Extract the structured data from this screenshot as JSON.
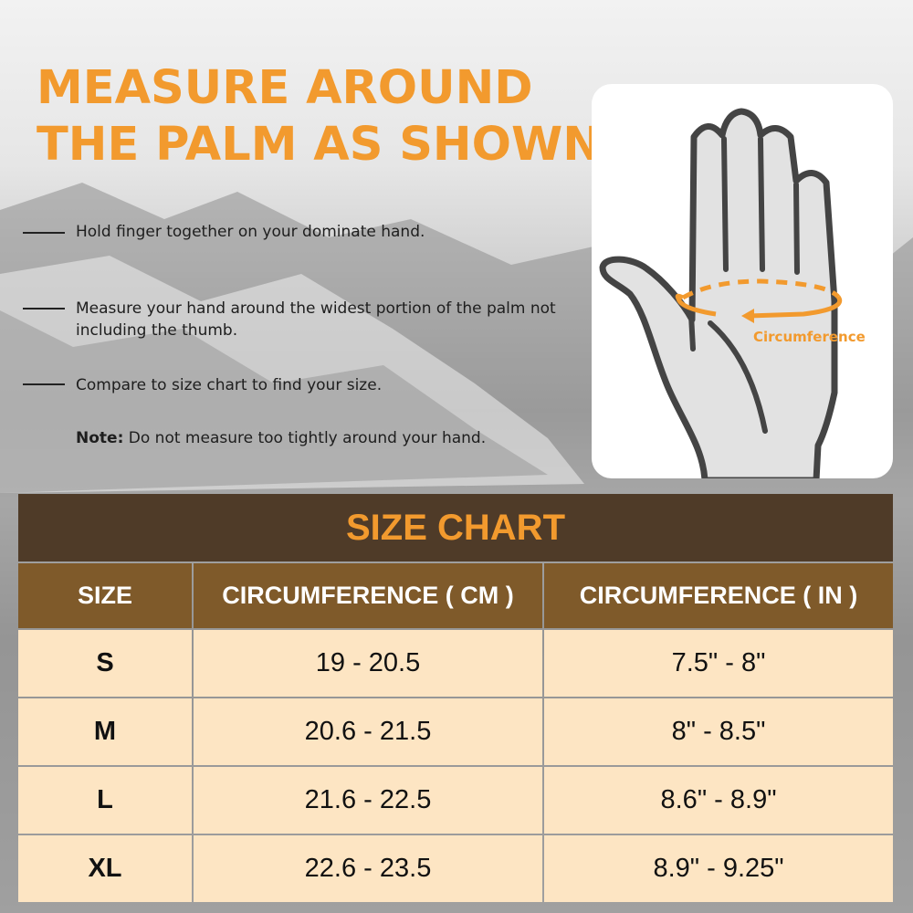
{
  "headline": {
    "line1": "MEASURE AROUND",
    "line2": "THE PALM AS SHOWN"
  },
  "instructions": [
    {
      "text": "Hold finger together on your dominate hand."
    },
    {
      "text": "Measure your hand around the widest portion of the palm not including the thumb."
    },
    {
      "text": "Compare to size chart to find your size."
    }
  ],
  "note": {
    "label": "Note:",
    "text": " Do not measure too tightly around your hand."
  },
  "illustration": {
    "label": "Circumference",
    "accent": "#f29a2e"
  },
  "size_chart": {
    "title": "SIZE CHART",
    "headers": [
      "SIZE",
      "CIRCUMFERENCE ( CM )",
      "CIRCUMFERENCE ( IN )"
    ],
    "rows": [
      [
        "S",
        "19 - 20.5",
        "7.5\" - 8\""
      ],
      [
        "M",
        "20.6 - 21.5",
        "8\" - 8.5\""
      ],
      [
        "L",
        "21.6 - 22.5",
        "8.6\" - 8.9\""
      ],
      [
        "XL",
        "22.6 - 23.5",
        "8.9\" - 9.25\""
      ]
    ]
  },
  "colors": {
    "orange": "#f29a2e",
    "dark_brown": "#4f3b28",
    "brown": "#7f5a2a",
    "cream": "#fde5c3"
  }
}
